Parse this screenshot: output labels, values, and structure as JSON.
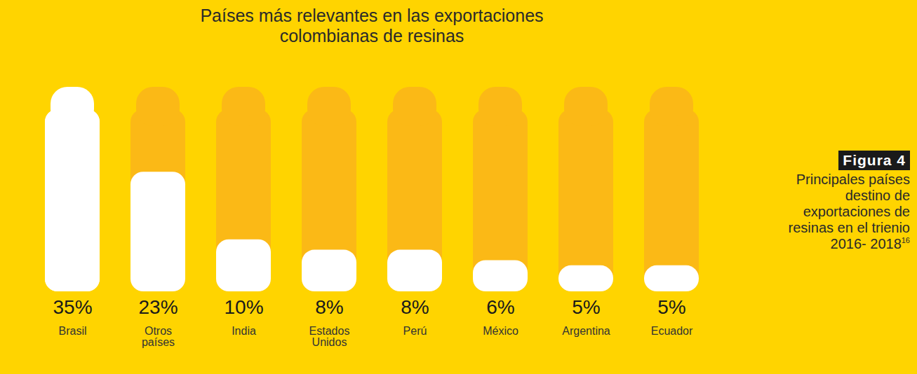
{
  "chart_data": {
    "type": "bar",
    "title": "Países más relevantes en las exportaciones colombianas de resinas",
    "categories": [
      "Brasil",
      "Otros países",
      "India",
      "Estados Unidos",
      "Perú",
      "México",
      "Argentina",
      "Ecuador"
    ],
    "values": [
      35,
      23,
      10,
      8,
      8,
      6,
      5,
      5
    ],
    "value_labels": [
      "35%",
      "23%",
      "10%",
      "8%",
      "8%",
      "6%",
      "5%",
      "5%"
    ],
    "color": "#ffffff",
    "ylim": [
      0,
      35
    ],
    "data_labels": true,
    "tick_labels": "x",
    "caption": {
      "tag": "Figura 4",
      "text": "Principales países destino de exportaciones de resinas en el trienio 2016- 2018",
      "footnote": "16"
    }
  }
}
